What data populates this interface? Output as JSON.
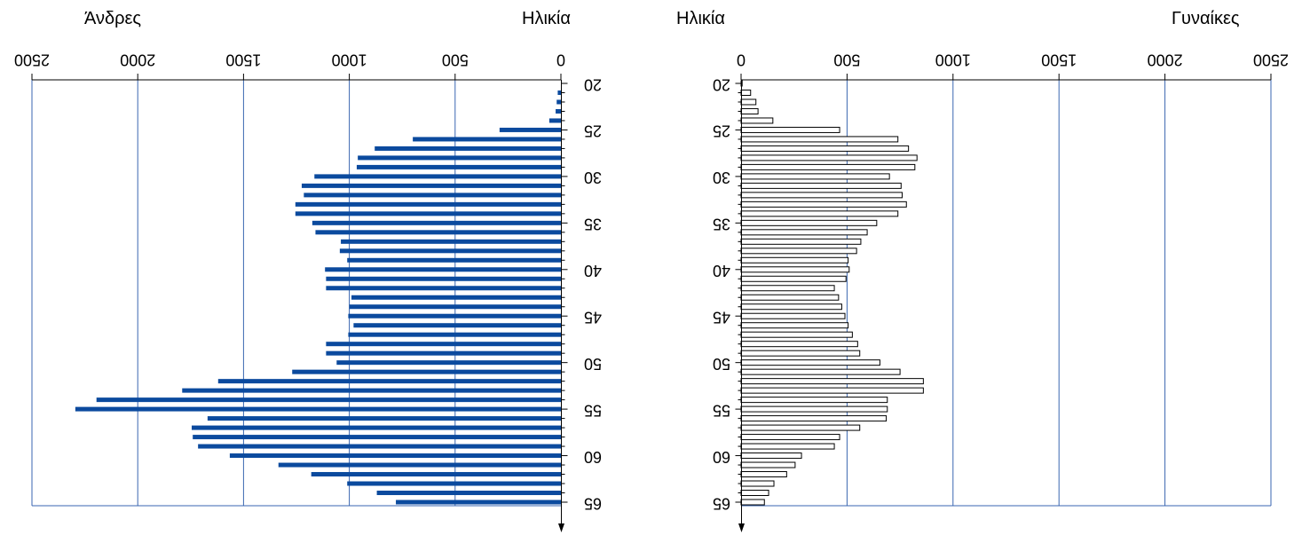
{
  "chart_data": {
    "type": "bar",
    "orientation": "horizontal",
    "left_panel": {
      "title": "Άνδρες",
      "axis_label": "Ηλικία",
      "xticks": [
        0,
        500,
        1000,
        1500,
        2000,
        2500
      ],
      "xtick_labels": [
        "2500",
        "2000",
        "1500",
        "1000",
        "500",
        "0"
      ],
      "xlim": [
        0,
        2500
      ],
      "reversed": true
    },
    "right_panel": {
      "title": "Γυναίκες",
      "axis_label": "Ηλικία",
      "xticks": [
        0,
        500,
        1000,
        1500,
        2000,
        2500
      ],
      "xtick_labels": [
        "0",
        "500",
        "1000",
        "1500",
        "2000",
        "2500"
      ],
      "xlim": [
        0,
        2500
      ]
    },
    "yticks": [
      20,
      25,
      30,
      35,
      40,
      45,
      50,
      55,
      60,
      65
    ],
    "ylim": [
      20,
      65
    ],
    "grid": true,
    "colors": {
      "male": "#0b4a9e",
      "female": "#ffffff",
      "female_edge": "#000000",
      "grid": "#3a66b0"
    },
    "series": [
      {
        "name": "Άνδρες",
        "x": [
          21,
          22,
          23,
          24,
          25,
          26,
          27,
          28,
          29,
          30,
          31,
          32,
          33,
          34,
          35,
          36,
          37,
          38,
          39,
          40,
          41,
          42,
          43,
          44,
          45,
          46,
          47,
          48,
          49,
          50,
          51,
          52,
          53,
          54,
          55,
          56,
          57,
          58,
          59,
          60,
          61,
          62,
          63,
          64,
          65
        ],
        "values": [
          15,
          20,
          25,
          55,
          290,
          700,
          880,
          960,
          965,
          1165,
          1225,
          1215,
          1255,
          1255,
          1175,
          1160,
          1040,
          1045,
          1010,
          1115,
          1110,
          1110,
          990,
          1000,
          1005,
          980,
          1005,
          1110,
          1110,
          1060,
          1270,
          1620,
          1790,
          2195,
          2295,
          1670,
          1745,
          1740,
          1715,
          1565,
          1335,
          1180,
          1010,
          870,
          780
        ]
      },
      {
        "name": "Γυναίκες",
        "x": [
          20,
          21,
          22,
          23,
          24,
          25,
          26,
          27,
          28,
          29,
          30,
          31,
          32,
          33,
          34,
          35,
          36,
          37,
          38,
          39,
          40,
          41,
          42,
          43,
          44,
          45,
          46,
          47,
          48,
          49,
          50,
          51,
          52,
          53,
          54,
          55,
          56,
          57,
          58,
          59,
          60,
          61,
          62,
          63,
          64,
          65
        ],
        "values": [
          5,
          45,
          70,
          80,
          150,
          465,
          740,
          790,
          830,
          820,
          700,
          755,
          760,
          780,
          740,
          640,
          595,
          565,
          545,
          505,
          510,
          495,
          440,
          460,
          475,
          490,
          505,
          525,
          550,
          560,
          655,
          750,
          860,
          860,
          690,
          690,
          685,
          560,
          465,
          440,
          285,
          255,
          215,
          155,
          130,
          110
        ]
      }
    ]
  }
}
